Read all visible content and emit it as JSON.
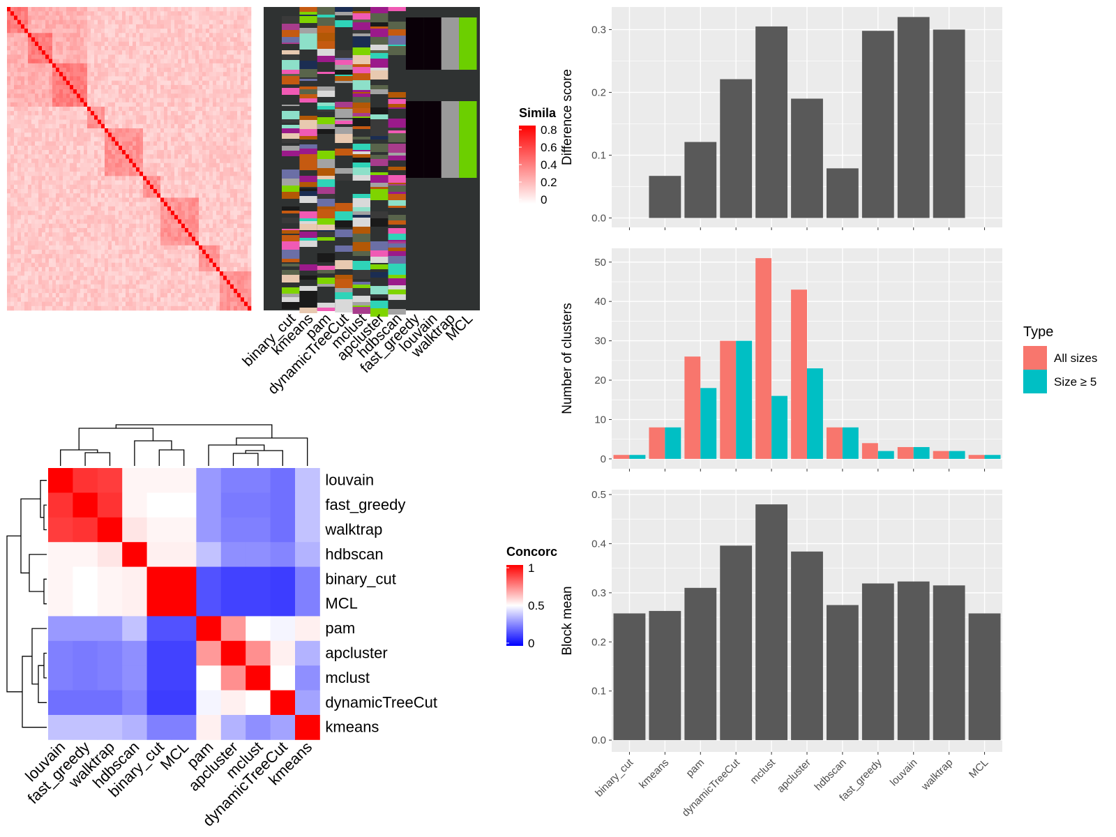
{
  "methods_order": [
    "binary_cut",
    "kmeans",
    "pam",
    "dynamicTreeCut",
    "mclust",
    "apcluster",
    "hdbscan",
    "fast_greedy",
    "louvain",
    "walktrap",
    "MCL"
  ],
  "colors": {
    "bar_gray": "#595959",
    "panel_bg": "#ebebeb",
    "grid": "#ffffff",
    "all_sizes": "#f8766d",
    "size5": "#00bfc4",
    "heat_bg": "#2f3232",
    "sim_high": "#ff0000",
    "conc_high": "#ff0000",
    "conc_mid": "#ffffff",
    "conc_low": "#0000ff"
  },
  "chart_data": [
    {
      "id": "similarity-heatmap",
      "type": "heatmap",
      "legend": {
        "title": "Simila",
        "ticks": [
          "0.8",
          "0.6",
          "0.4",
          "0.2",
          "0"
        ],
        "range": [
          0,
          0.8
        ]
      },
      "annotation_columns": [
        "binary_cut",
        "kmeans",
        "pam",
        "dynamicTreeCut",
        "mclust",
        "apcluster",
        "hdbscan",
        "fast_greedy",
        "louvain",
        "walktrap",
        "MCL"
      ]
    },
    {
      "id": "concordance-heatmap",
      "type": "heatmap",
      "rows": [
        "louvain",
        "fast_greedy",
        "walktrap",
        "hdbscan",
        "binary_cut",
        "MCL",
        "pam",
        "apcluster",
        "mclust",
        "dynamicTreeCut",
        "kmeans"
      ],
      "cols": [
        "louvain",
        "fast_greedy",
        "walktrap",
        "hdbscan",
        "binary_cut",
        "MCL",
        "pam",
        "apcluster",
        "mclust",
        "dynamicTreeCut",
        "kmeans"
      ],
      "values": [
        [
          1.0,
          0.9,
          0.88,
          0.52,
          0.52,
          0.52,
          0.3,
          0.25,
          0.25,
          0.22,
          0.38
        ],
        [
          0.9,
          1.0,
          0.9,
          0.52,
          0.5,
          0.5,
          0.3,
          0.24,
          0.24,
          0.22,
          0.38
        ],
        [
          0.88,
          0.9,
          1.0,
          0.55,
          0.52,
          0.52,
          0.3,
          0.25,
          0.25,
          0.22,
          0.38
        ],
        [
          0.52,
          0.52,
          0.55,
          1.0,
          0.53,
          0.53,
          0.38,
          0.28,
          0.28,
          0.26,
          0.35
        ],
        [
          0.52,
          0.5,
          0.52,
          0.53,
          1.0,
          1.0,
          0.16,
          0.13,
          0.13,
          0.12,
          0.25
        ],
        [
          0.52,
          0.5,
          0.52,
          0.53,
          1.0,
          1.0,
          0.16,
          0.13,
          0.13,
          0.12,
          0.25
        ],
        [
          0.3,
          0.3,
          0.3,
          0.38,
          0.16,
          0.16,
          1.0,
          0.7,
          0.5,
          0.48,
          0.53
        ],
        [
          0.25,
          0.24,
          0.25,
          0.28,
          0.13,
          0.13,
          0.7,
          1.0,
          0.72,
          0.53,
          0.35
        ],
        [
          0.25,
          0.24,
          0.25,
          0.28,
          0.13,
          0.13,
          0.5,
          0.72,
          1.0,
          0.5,
          0.28
        ],
        [
          0.22,
          0.22,
          0.22,
          0.26,
          0.12,
          0.12,
          0.48,
          0.53,
          0.5,
          1.0,
          0.32
        ],
        [
          0.38,
          0.38,
          0.38,
          0.35,
          0.25,
          0.25,
          0.53,
          0.35,
          0.28,
          0.32,
          1.0
        ]
      ],
      "legend": {
        "title": "Concorc",
        "ticks": [
          "1",
          "0.5",
          "0"
        ],
        "range": [
          0,
          1
        ]
      }
    },
    {
      "id": "difference-score",
      "type": "bar",
      "categories": [
        "binary_cut",
        "kmeans",
        "pam",
        "dynamicTreeCut",
        "mclust",
        "apcluster",
        "hdbscan",
        "fast_greedy",
        "louvain",
        "walktrap",
        "MCL"
      ],
      "values": [
        0.0,
        0.067,
        0.121,
        0.221,
        0.305,
        0.19,
        0.079,
        0.298,
        0.32,
        0.3,
        0.0
      ],
      "ylabel": "Difference score",
      "ylim": [
        -0.015,
        0.336
      ],
      "yticks": [
        0.0,
        0.1,
        0.2,
        0.3
      ],
      "ytick_labels": [
        "0.0",
        "0.1",
        "0.2",
        "0.3"
      ]
    },
    {
      "id": "number-of-clusters",
      "type": "bar",
      "categories": [
        "binary_cut",
        "kmeans",
        "pam",
        "dynamicTreeCut",
        "mclust",
        "apcluster",
        "hdbscan",
        "fast_greedy",
        "louvain",
        "walktrap",
        "MCL"
      ],
      "series": [
        {
          "name": "All sizes",
          "values": [
            1,
            8,
            26,
            30,
            51,
            43,
            8,
            4,
            3,
            2,
            1
          ]
        },
        {
          "name": "Size ≥ 5",
          "values": [
            1,
            8,
            18,
            30,
            16,
            23,
            8,
            2,
            3,
            2,
            1
          ]
        }
      ],
      "ylabel": "Number of clusters",
      "ylim": [
        -2.5,
        53.5
      ],
      "yticks": [
        0,
        10,
        20,
        30,
        40,
        50
      ],
      "ytick_labels": [
        "0",
        "10",
        "20",
        "30",
        "40",
        "50"
      ],
      "legend_title": "Type",
      "legend_position": "right"
    },
    {
      "id": "block-mean",
      "type": "bar",
      "categories": [
        "binary_cut",
        "kmeans",
        "pam",
        "dynamicTreeCut",
        "mclust",
        "apcluster",
        "hdbscan",
        "fast_greedy",
        "louvain",
        "walktrap",
        "MCL"
      ],
      "values": [
        0.258,
        0.263,
        0.31,
        0.396,
        0.48,
        0.384,
        0.275,
        0.319,
        0.323,
        0.315,
        0.258
      ],
      "ylabel": "Block mean",
      "ylim": [
        -0.024,
        0.51
      ],
      "yticks": [
        0.0,
        0.1,
        0.2,
        0.3,
        0.4,
        0.5
      ],
      "ytick_labels": [
        "0.0",
        "0.1",
        "0.2",
        "0.3",
        "0.4",
        "0.5"
      ]
    }
  ]
}
